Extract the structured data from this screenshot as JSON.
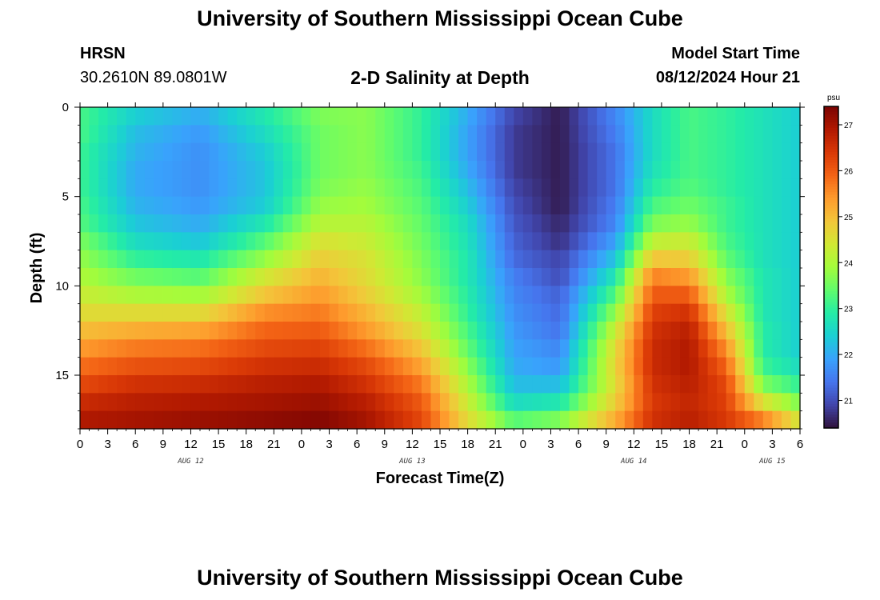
{
  "header": {
    "title": "University of Southern Mississippi Ocean Cube",
    "station": "HRSN",
    "coordinates": "30.2610N  89.0801W",
    "plot_title": "2-D Salinity at Depth",
    "model_start_label": "Model Start Time",
    "model_start_value": "08/12/2024 Hour 21"
  },
  "footer": {
    "title": "University of Southern Mississippi Ocean Cube"
  },
  "chart_data": {
    "type": "heatmap",
    "title": "2-D Salinity at Depth",
    "xlabel": "Forecast Time(Z)",
    "ylabel": "Depth (ft)",
    "x_range_hours": [
      0,
      78
    ],
    "x_start_label": "Aug 12 00Z",
    "x_tick_labels": [
      "0",
      "3",
      "6",
      "9",
      "12",
      "15",
      "18",
      "21",
      "0",
      "3",
      "6",
      "9",
      "12",
      "15",
      "18",
      "21",
      "0",
      "3",
      "6",
      "9",
      "12",
      "15",
      "18",
      "21",
      "0",
      "3",
      "6"
    ],
    "day_labels": [
      {
        "text": "AUG 12",
        "hour": 12
      },
      {
        "text": "AUG 13",
        "hour": 36
      },
      {
        "text": "AUG 14",
        "hour": 60
      },
      {
        "text": "AUG 15",
        "hour": 75
      }
    ],
    "ylim": [
      0,
      18
    ],
    "y_reversed": true,
    "y_ticks": [
      0,
      5,
      10,
      15
    ],
    "y_tick_labels": [
      "0",
      "5",
      "10",
      "15"
    ],
    "depth_levels_ft": [
      0.5,
      1.5,
      2.5,
      3.5,
      4.5,
      5.5,
      6.5,
      7.5,
      8.5,
      9.5,
      10.5,
      11.5,
      12.5,
      13.5,
      14.5,
      15.5,
      16.5,
      17.5
    ],
    "colorbar": {
      "unit": "psu",
      "min": 20.4,
      "max": 27.4,
      "ticks": [
        21,
        22,
        23,
        24,
        25,
        26,
        27
      ],
      "tick_labels": [
        "21",
        "22",
        "23",
        "24",
        "25",
        "26",
        "27"
      ],
      "colors": [
        "#30123b",
        "#4145ab",
        "#4675ed",
        "#39a2fc",
        "#1bcfd4",
        "#24eca6",
        "#61fc6c",
        "#a4fc3b",
        "#d1e834",
        "#f3c63a",
        "#fe9b2d",
        "#f36315",
        "#d93806",
        "#b11901",
        "#7a0402"
      ]
    },
    "salinity_profiles_psu": {
      "hour_0": [
        23.2,
        23.2,
        23.1,
        23.1,
        23.1,
        23.2,
        23.3,
        23.6,
        23.8,
        24.0,
        24.3,
        24.6,
        25.0,
        25.4,
        25.8,
        26.2,
        26.6,
        26.9
      ],
      "hour_6": [
        22.4,
        22.2,
        22.1,
        22.0,
        22.0,
        22.1,
        22.3,
        22.6,
        23.0,
        23.5,
        24.0,
        24.6,
        25.2,
        25.7,
        26.1,
        26.5,
        26.8,
        27.0
      ],
      "hour_13": [
        22.0,
        21.8,
        21.7,
        21.7,
        21.7,
        21.8,
        22.0,
        22.3,
        22.8,
        23.3,
        23.9,
        24.6,
        25.3,
        25.8,
        26.2,
        26.6,
        26.9,
        27.1
      ],
      "hour_20": [
        22.8,
        22.6,
        22.4,
        22.3,
        22.3,
        22.4,
        22.8,
        23.3,
        23.8,
        24.4,
        24.9,
        25.5,
        25.9,
        26.2,
        26.5,
        26.8,
        27.0,
        27.2
      ],
      "hour_26": [
        23.6,
        23.5,
        23.5,
        23.5,
        23.6,
        23.8,
        24.1,
        24.5,
        24.8,
        25.1,
        25.4,
        25.7,
        26.0,
        26.3,
        26.6,
        26.9,
        27.1,
        27.3
      ],
      "hour_31": [
        23.7,
        23.7,
        23.7,
        23.7,
        23.8,
        23.9,
        24.1,
        24.3,
        24.5,
        24.6,
        24.8,
        25.1,
        25.4,
        25.8,
        26.2,
        26.5,
        26.8,
        27.0
      ],
      "hour_37": [
        23.0,
        23.0,
        23.0,
        23.1,
        23.2,
        23.3,
        23.4,
        23.5,
        23.6,
        23.7,
        23.9,
        24.2,
        24.5,
        24.9,
        25.3,
        25.7,
        26.0,
        26.2
      ],
      "hour_42": [
        22.0,
        21.9,
        21.9,
        22.0,
        22.2,
        22.4,
        22.6,
        22.7,
        22.8,
        22.8,
        22.9,
        23.0,
        23.2,
        23.4,
        23.7,
        24.0,
        24.3,
        24.6
      ],
      "hour_47": [
        20.9,
        20.8,
        20.8,
        20.8,
        20.9,
        21.0,
        21.1,
        21.2,
        21.3,
        21.5,
        21.6,
        21.7,
        21.8,
        21.9,
        22.0,
        22.2,
        22.6,
        23.3
      ],
      "hour_52": [
        20.5,
        20.5,
        20.5,
        20.5,
        20.5,
        20.5,
        20.6,
        20.7,
        20.9,
        21.0,
        21.2,
        21.3,
        21.4,
        21.6,
        21.8,
        22.2,
        22.8,
        23.6
      ],
      "hour_58": [
        21.6,
        21.5,
        21.4,
        21.4,
        21.4,
        21.5,
        21.6,
        21.9,
        22.3,
        22.8,
        23.3,
        23.8,
        24.3,
        24.6,
        24.7,
        24.6,
        24.8,
        25.2
      ],
      "hour_62": [
        22.6,
        22.6,
        22.6,
        22.7,
        22.9,
        23.2,
        23.6,
        24.2,
        24.9,
        25.6,
        26.0,
        26.3,
        26.5,
        26.6,
        26.6,
        26.5,
        26.4,
        26.5
      ],
      "hour_66": [
        23.2,
        23.2,
        23.2,
        23.2,
        23.3,
        23.5,
        23.8,
        24.3,
        24.8,
        25.4,
        26.0,
        26.5,
        26.8,
        26.9,
        26.9,
        26.8,
        26.7,
        26.8
      ],
      "hour_70": [
        23.0,
        23.0,
        23.0,
        23.0,
        23.0,
        23.1,
        23.1,
        23.2,
        23.4,
        23.7,
        24.0,
        24.5,
        25.0,
        25.5,
        25.9,
        26.2,
        26.3,
        26.4
      ],
      "hour_74": [
        22.7,
        22.7,
        22.7,
        22.7,
        22.7,
        22.7,
        22.7,
        22.7,
        22.7,
        22.8,
        22.8,
        22.8,
        22.9,
        22.9,
        23.1,
        23.6,
        24.5,
        25.6
      ],
      "hour_78": [
        22.4,
        22.4,
        22.4,
        22.4,
        22.4,
        22.4,
        22.4,
        22.4,
        22.4,
        22.4,
        22.4,
        22.4,
        22.4,
        22.4,
        22.6,
        23.0,
        23.6,
        24.4
      ]
    }
  }
}
